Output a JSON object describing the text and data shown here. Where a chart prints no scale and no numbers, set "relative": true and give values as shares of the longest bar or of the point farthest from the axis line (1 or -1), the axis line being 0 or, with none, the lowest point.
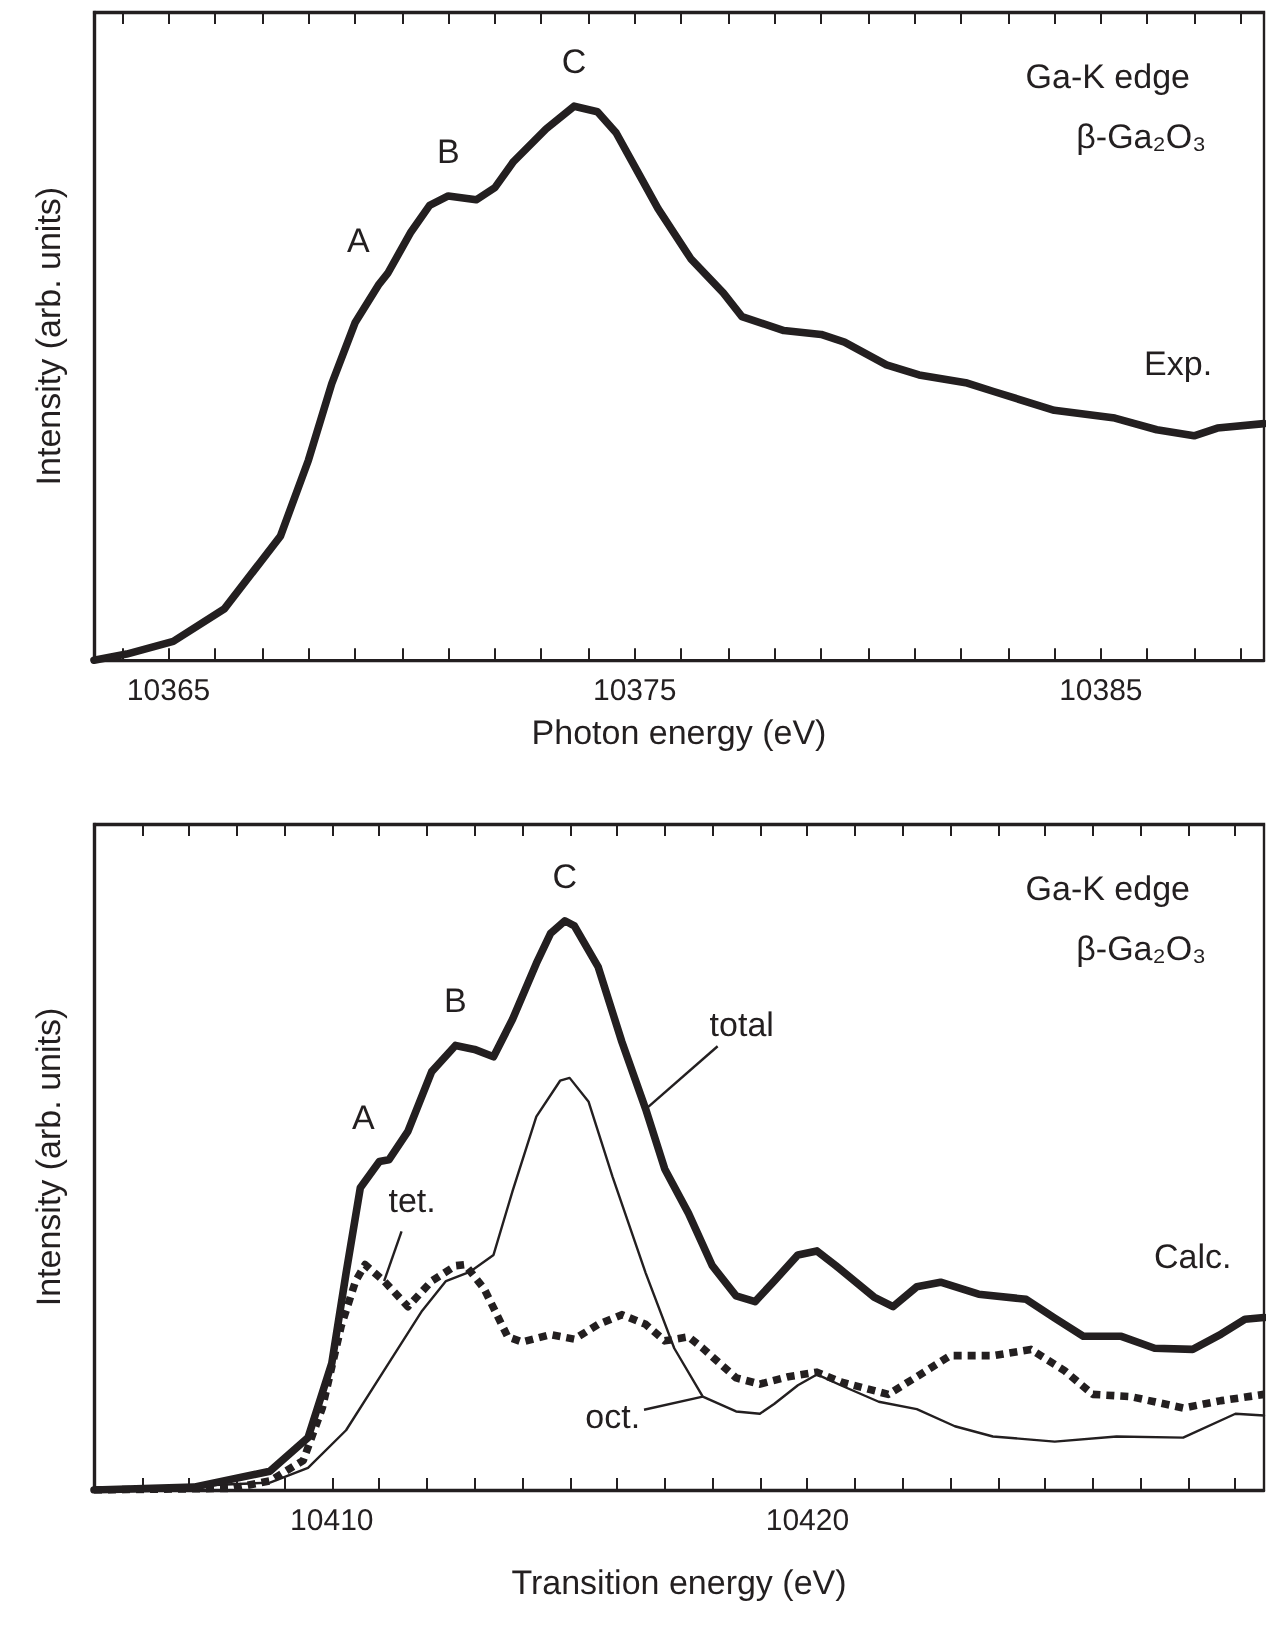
{
  "chart_data": [
    {
      "type": "line",
      "xlabel": "Photon energy (eV)",
      "ylabel": "Intensity (arb. units)",
      "relative": true,
      "grid": false,
      "xlim": [
        10363.4,
        10388.5
      ],
      "xticks": [
        {
          "value": 10364,
          "label": null
        },
        10365,
        {
          "value": 10366,
          "label": null
        },
        {
          "value": 10367,
          "label": null
        },
        {
          "value": 10368,
          "label": null
        },
        {
          "value": 10369,
          "label": null
        },
        {
          "value": 10370,
          "label": null
        },
        {
          "value": 10371,
          "label": null
        },
        {
          "value": 10372,
          "label": null
        },
        {
          "value": 10373,
          "label": null
        },
        {
          "value": 10374,
          "label": null
        },
        10375,
        {
          "value": 10376,
          "label": null
        },
        {
          "value": 10377,
          "label": null
        },
        {
          "value": 10378,
          "label": null
        },
        {
          "value": 10379,
          "label": null
        },
        {
          "value": 10380,
          "label": null
        },
        {
          "value": 10381,
          "label": null
        },
        {
          "value": 10382,
          "label": null
        },
        {
          "value": 10383,
          "label": null
        },
        {
          "value": 10384,
          "label": null
        },
        10385,
        {
          "value": 10386,
          "label": null
        },
        {
          "value": 10387,
          "label": null
        },
        {
          "value": 10388,
          "label": null
        }
      ],
      "series": [
        {
          "color": "#231f20",
          "x": [
            10363.4,
            10364.1,
            10365.1,
            10366.2,
            10367.4,
            10368.0,
            10368.5,
            10369.0,
            10369.5,
            10369.7,
            10370.2,
            10370.6,
            10371.0,
            10371.6,
            10372.0,
            10372.4,
            10373.1,
            10373.7,
            10374.2,
            10374.6,
            10375.1,
            10375.5,
            10376.2,
            10376.9,
            10377.3,
            10378.2,
            10379.0,
            10379.5,
            10380.4,
            10381.1,
            10382.1,
            10382.7,
            10384.0,
            10385.3,
            10386.2,
            10387.0,
            10387.5,
            10388.5
          ],
          "values": [
            0,
            0.011,
            0.034,
            0.093,
            0.224,
            0.361,
            0.499,
            0.609,
            0.677,
            0.698,
            0.773,
            0.821,
            0.838,
            0.831,
            0.853,
            0.9,
            0.959,
            1,
            0.99,
            0.952,
            0.876,
            0.815,
            0.725,
            0.663,
            0.62,
            0.595,
            0.588,
            0.574,
            0.533,
            0.515,
            0.501,
            0.485,
            0.451,
            0.437,
            0.416,
            0.405,
            0.419,
            0.427
          ]
        }
      ],
      "annotations": [
        "Ga-K edge",
        "β-Ga₂O₃",
        {
          "text": "A",
          "x": 10369.5,
          "y": 0.677
        },
        {
          "text": "B",
          "x": 10371.0,
          "y": 0.838
        },
        {
          "text": "C",
          "x": 10373.7,
          "y": 1
        },
        {
          "text": "Exp.",
          "x": 10387.0,
          "y": 0.405
        }
      ]
    },
    {
      "type": "line",
      "xlabel": "Transition energy (eV)",
      "ylabel": "Intensity (arb. units)",
      "relative": true,
      "grid": false,
      "xlim": [
        10405.0,
        10429.6
      ],
      "xticks": [
        {
          "value": 10406,
          "label": null
        },
        {
          "value": 10407,
          "label": null
        },
        {
          "value": 10408,
          "label": null
        },
        {
          "value": 10409,
          "label": null
        },
        10410,
        {
          "value": 10411,
          "label": null
        },
        {
          "value": 10412,
          "label": null
        },
        {
          "value": 10413,
          "label": null
        },
        {
          "value": 10414,
          "label": null
        },
        {
          "value": 10415,
          "label": null
        },
        {
          "value": 10416,
          "label": null
        },
        {
          "value": 10417,
          "label": null
        },
        {
          "value": 10418,
          "label": null
        },
        {
          "value": 10419,
          "label": null
        },
        10420,
        {
          "value": 10421,
          "label": null
        },
        {
          "value": 10422,
          "label": null
        },
        {
          "value": 10423,
          "label": null
        },
        {
          "value": 10424,
          "label": null
        },
        {
          "value": 10425,
          "label": null
        },
        {
          "value": 10426,
          "label": null
        },
        {
          "value": 10427,
          "label": null
        },
        {
          "value": 10428,
          "label": null
        },
        {
          "value": 10429,
          "label": null
        }
      ],
      "series": [
        {
          "color": "#231f20",
          "x": [
            10405.0,
            10407.1,
            10408.7,
            10409.5,
            10410.0,
            10410.3,
            10410.6,
            10411.0,
            10411.2,
            10411.6,
            10412.1,
            10412.6,
            10413.0,
            10413.4,
            10413.8,
            10414.3,
            10414.6,
            10414.9,
            10415.1,
            10415.6,
            10416.1,
            10416.6,
            10417.0,
            10417.5,
            10418.0,
            10418.5,
            10418.9,
            10419.3,
            10419.8,
            10420.2,
            10420.6,
            10421.4,
            10421.8,
            10422.3,
            10422.8,
            10423.6,
            10424.6,
            10425.2,
            10425.8,
            10426.6,
            10427.3,
            10428.1,
            10428.7,
            10429.2,
            10429.6
          ],
          "values": [
            0,
            0.005,
            0.033,
            0.092,
            0.223,
            0.381,
            0.531,
            0.577,
            0.58,
            0.63,
            0.735,
            0.781,
            0.774,
            0.761,
            0.827,
            0.925,
            0.978,
            1,
            0.991,
            0.919,
            0.787,
            0.669,
            0.564,
            0.486,
            0.394,
            0.341,
            0.331,
            0.367,
            0.413,
            0.42,
            0.394,
            0.339,
            0.322,
            0.357,
            0.365,
            0.344,
            0.335,
            0.302,
            0.27,
            0.27,
            0.249,
            0.247,
            0.274,
            0.3,
            0.303
          ]
        },
        {
          "color": "#231f20",
          "line_style": "dotted",
          "x": [
            10405.0,
            10407.9,
            10408.7,
            10409.4,
            10409.8,
            10410.2,
            10410.5,
            10410.7,
            10411.1,
            10411.6,
            10412.1,
            10412.6,
            10412.8,
            10413.2,
            10413.7,
            10414.0,
            10414.6,
            10415.1,
            10415.6,
            10416.1,
            10416.6,
            10417.0,
            10417.5,
            10417.8,
            10418.5,
            10419.0,
            10419.6,
            10420.2,
            10420.7,
            10421.7,
            10422.3,
            10423.0,
            10423.9,
            10424.7,
            10425.4,
            10426.0,
            10426.8,
            10427.9,
            10428.7,
            10429.6
          ],
          "values": [
            0,
            0.003,
            0.016,
            0.052,
            0.144,
            0.289,
            0.367,
            0.396,
            0.367,
            0.322,
            0.367,
            0.394,
            0.396,
            0.354,
            0.269,
            0.26,
            0.273,
            0.265,
            0.291,
            0.308,
            0.291,
            0.262,
            0.269,
            0.249,
            0.197,
            0.186,
            0.199,
            0.207,
            0.19,
            0.168,
            0.199,
            0.236,
            0.236,
            0.247,
            0.21,
            0.168,
            0.164,
            0.144,
            0.157,
            0.168
          ]
        },
        {
          "color": "#231f20",
          "x": [
            10405.0,
            10408.7,
            10409.5,
            10410.3,
            10411.1,
            10411.9,
            10412.4,
            10412.9,
            10413.4,
            10413.8,
            10414.3,
            10414.8,
            10415.0,
            10415.4,
            10415.9,
            10416.6,
            10417.2,
            10417.8,
            10418.5,
            10419.0,
            10419.3,
            10419.8,
            10420.2,
            10420.7,
            10421.5,
            10422.3,
            10423.1,
            10423.9,
            10425.2,
            10426.5,
            10427.9,
            10429.0,
            10429.6
          ],
          "values": [
            0,
            0.013,
            0.039,
            0.105,
            0.21,
            0.315,
            0.367,
            0.383,
            0.413,
            0.525,
            0.656,
            0.719,
            0.724,
            0.682,
            0.551,
            0.381,
            0.249,
            0.164,
            0.138,
            0.134,
            0.151,
            0.184,
            0.203,
            0.184,
            0.155,
            0.142,
            0.112,
            0.094,
            0.085,
            0.094,
            0.092,
            0.134,
            0.131
          ]
        }
      ],
      "annotations": [
        "Ga-K edge",
        "β-Ga₂O₃",
        {
          "text": "A",
          "x": 10411.0,
          "y": 0.577
        },
        {
          "text": "B",
          "x": 10412.6,
          "y": 0.781
        },
        {
          "text": "C",
          "x": 10414.9,
          "y": 1
        },
        {
          "text": "total",
          "x": 10416.6,
          "y": 0.669
        },
        {
          "text": "tet.",
          "x": 10411.1,
          "y": 0.367
        },
        {
          "text": "oct.",
          "x": 10417.8,
          "y": 0.164
        },
        {
          "text": "Calc.",
          "x": 10428.1,
          "y": 0.247
        }
      ]
    }
  ]
}
